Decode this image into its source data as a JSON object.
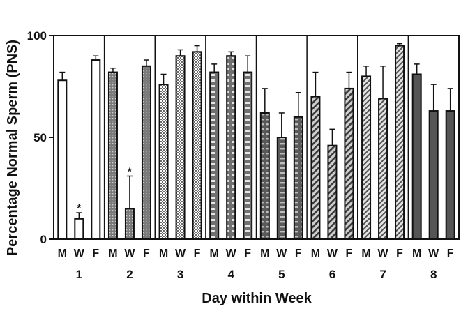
{
  "chart_data": {
    "type": "bar",
    "ylabel": "Percentage Normal Sperm (PNS)",
    "xlabel": "Day within Week",
    "ylim": [
      0,
      100
    ],
    "yticks": [
      0,
      50,
      100
    ],
    "categories": [
      "M",
      "W",
      "F"
    ],
    "groups": [
      {
        "label": "1",
        "values": [
          78,
          10,
          88
        ],
        "errors": [
          4,
          3,
          2
        ],
        "markers": [
          "",
          "*",
          ""
        ],
        "pattern": "white"
      },
      {
        "label": "2",
        "values": [
          82,
          15,
          85
        ],
        "errors": [
          2,
          16,
          3
        ],
        "markers": [
          "",
          "*",
          ""
        ],
        "pattern": "gray-dots"
      },
      {
        "label": "3",
        "values": [
          76,
          90,
          92
        ],
        "errors": [
          5,
          3,
          3
        ],
        "markers": [
          "",
          "",
          ""
        ],
        "pattern": "checker"
      },
      {
        "label": "4",
        "values": [
          82,
          90,
          82
        ],
        "errors": [
          4,
          2,
          8
        ],
        "markers": [
          "",
          "",
          ""
        ],
        "pattern": "dashes"
      },
      {
        "label": "5",
        "values": [
          62,
          50,
          60
        ],
        "errors": [
          12,
          12,
          12
        ],
        "markers": [
          "",
          "",
          ""
        ],
        "pattern": "dashes-dark"
      },
      {
        "label": "6",
        "values": [
          70,
          46,
          74
        ],
        "errors": [
          12,
          8,
          8
        ],
        "markers": [
          "",
          "",
          ""
        ],
        "pattern": "hatch"
      },
      {
        "label": "7",
        "values": [
          80,
          69,
          95
        ],
        "errors": [
          5,
          16,
          1
        ],
        "markers": [
          "",
          "",
          ""
        ],
        "pattern": "hatch-light"
      },
      {
        "label": "8",
        "values": [
          81,
          63,
          63
        ],
        "errors": [
          5,
          13,
          11
        ],
        "markers": [
          "",
          "",
          ""
        ],
        "pattern": "dark-gray"
      }
    ]
  }
}
